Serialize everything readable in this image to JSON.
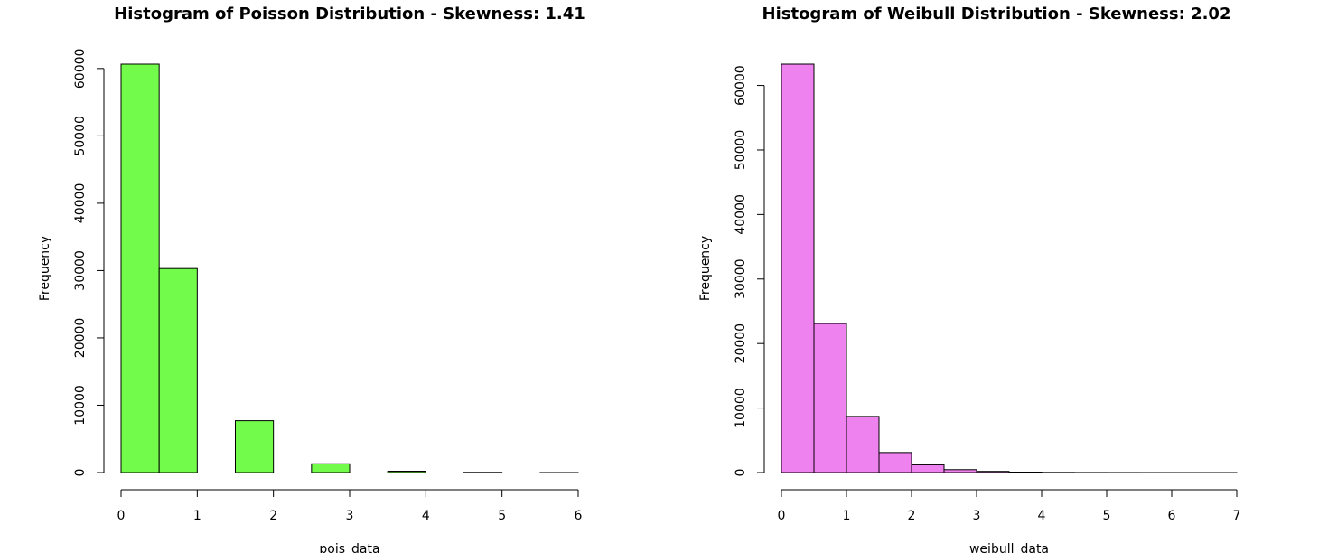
{
  "chart_data": [
    {
      "type": "bar",
      "title": "Histogram of Poisson Distribution - Skewness: 1.41",
      "xlabel": "pois_data",
      "ylabel": "Frequency",
      "color": "#73FB4B",
      "bin_width": 0.5,
      "bins": [
        {
          "start": 0.0,
          "count": 60650
        },
        {
          "start": 0.5,
          "count": 30300
        },
        {
          "start": 1.0,
          "count": 0
        },
        {
          "start": 1.5,
          "count": 7700
        },
        {
          "start": 2.0,
          "count": 0
        },
        {
          "start": 2.5,
          "count": 1300
        },
        {
          "start": 3.0,
          "count": 0
        },
        {
          "start": 3.5,
          "count": 200
        },
        {
          "start": 4.0,
          "count": 0
        },
        {
          "start": 4.5,
          "count": 30
        },
        {
          "start": 5.0,
          "count": 0
        },
        {
          "start": 5.5,
          "count": 5
        }
      ],
      "xlim": [
        0,
        6
      ],
      "ylim": [
        0,
        60650
      ],
      "xticks": [
        0,
        1,
        2,
        3,
        4,
        5,
        6
      ],
      "yticks": [
        0,
        10000,
        20000,
        30000,
        40000,
        50000,
        60000
      ]
    },
    {
      "type": "bar",
      "title": "Histogram of Weibull Distribution - Skewness: 2.02",
      "xlabel": "weibull_data",
      "ylabel": "Frequency",
      "color": "#EE82EE",
      "bin_width": 0.5,
      "bins": [
        {
          "start": 0.0,
          "count": 63300
        },
        {
          "start": 0.5,
          "count": 23100
        },
        {
          "start": 1.0,
          "count": 8700
        },
        {
          "start": 1.5,
          "count": 3100
        },
        {
          "start": 2.0,
          "count": 1200
        },
        {
          "start": 2.5,
          "count": 450
        },
        {
          "start": 3.0,
          "count": 180
        },
        {
          "start": 3.5,
          "count": 70
        },
        {
          "start": 4.0,
          "count": 25
        },
        {
          "start": 4.5,
          "count": 10
        },
        {
          "start": 5.0,
          "count": 5
        },
        {
          "start": 5.5,
          "count": 2
        },
        {
          "start": 6.0,
          "count": 1
        },
        {
          "start": 6.5,
          "count": 1
        }
      ],
      "xlim": [
        0,
        7
      ],
      "ylim": [
        0,
        63300
      ],
      "xticks": [
        0,
        1,
        2,
        3,
        4,
        5,
        6,
        7
      ],
      "yticks": [
        0,
        10000,
        20000,
        30000,
        40000,
        50000,
        60000
      ]
    }
  ]
}
